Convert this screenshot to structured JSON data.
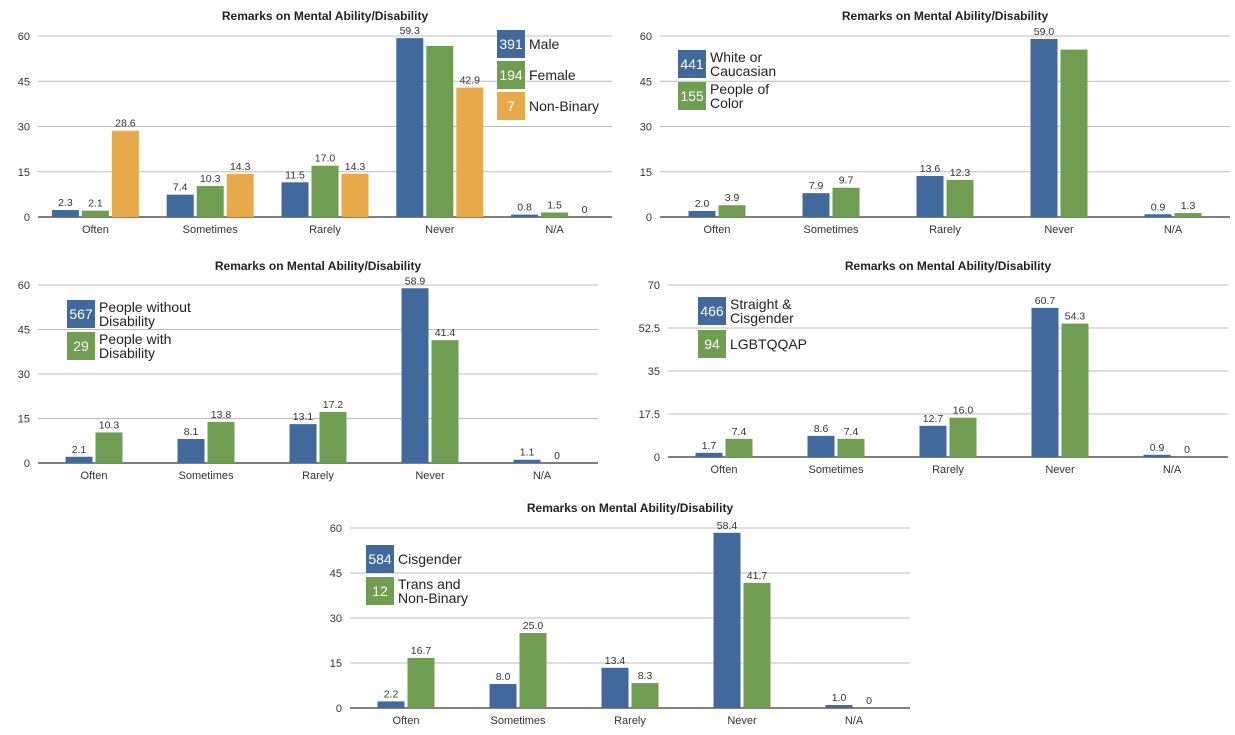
{
  "colors": {
    "blue": "#41699b",
    "green": "#6f9e52",
    "orange": "#e8a94a",
    "grid": "#bdbdbd",
    "axis": "#333333"
  },
  "chart_data": [
    {
      "type": "bar",
      "title": "Remarks on Mental Ability/Disability",
      "categories": [
        "Often",
        "Sometimes",
        "Rarely",
        "Never",
        "N/A"
      ],
      "ylim": [
        0,
        60
      ],
      "yticks": [
        "0",
        "15",
        "30",
        "45",
        "60"
      ],
      "grid": true,
      "legend_position": "top-right",
      "series": [
        {
          "count": "391",
          "name": "Male",
          "color": "#41699b",
          "values": [
            2.3,
            7.4,
            11.5,
            59.3,
            0.8
          ],
          "labels": [
            "2.3",
            "7.4",
            "11.5",
            "59.3",
            "0.8"
          ]
        },
        {
          "count": "194",
          "name": "Female",
          "color": "#6f9e52",
          "values": [
            2.1,
            10.3,
            17.0,
            56.7,
            1.5
          ],
          "labels": [
            "2.1",
            "10.3",
            "17.0",
            "",
            "1.5"
          ]
        },
        {
          "count": "7",
          "name": "Non-Binary",
          "color": "#e8a94a",
          "values": [
            28.6,
            14.3,
            14.3,
            42.9,
            0
          ],
          "labels": [
            "28.6",
            "14.3",
            "14.3",
            "42.9",
            "0"
          ]
        }
      ]
    },
    {
      "type": "bar",
      "title": "Remarks on Mental Ability/Disability",
      "categories": [
        "Often",
        "Sometimes",
        "Rarely",
        "Never",
        "N/A"
      ],
      "ylim": [
        0,
        60
      ],
      "yticks": [
        "0",
        "15",
        "30",
        "45",
        "60"
      ],
      "grid": true,
      "legend_position": "top-left",
      "series": [
        {
          "count": "441",
          "name": "White or Caucasian",
          "color": "#41699b",
          "values": [
            2.0,
            7.9,
            13.6,
            59.0,
            0.9
          ],
          "labels": [
            "2.0",
            "7.9",
            "13.6",
            "59.0",
            "0.9"
          ]
        },
        {
          "count": "155",
          "name": "People of Color",
          "color": "#6f9e52",
          "values": [
            3.9,
            9.7,
            12.3,
            55.5,
            1.3
          ],
          "labels": [
            "3.9",
            "9.7",
            "12.3",
            "",
            "1.3"
          ]
        }
      ]
    },
    {
      "type": "bar",
      "title": "Remarks on Mental Ability/Disability",
      "categories": [
        "Often",
        "Sometimes",
        "Rarely",
        "Never",
        "N/A"
      ],
      "ylim": [
        0,
        60
      ],
      "yticks": [
        "0",
        "15",
        "30",
        "45",
        "60"
      ],
      "grid": true,
      "legend_position": "top-left",
      "series": [
        {
          "count": "567",
          "name": "People without Disability",
          "color": "#41699b",
          "values": [
            2.1,
            8.1,
            13.1,
            58.9,
            1.1
          ],
          "labels": [
            "2.1",
            "8.1",
            "13.1",
            "58.9",
            "1.1"
          ]
        },
        {
          "count": "29",
          "name": "People with Disability",
          "color": "#6f9e52",
          "values": [
            10.3,
            13.8,
            17.2,
            41.4,
            0
          ],
          "labels": [
            "10.3",
            "13.8",
            "17.2",
            "41.4",
            "0"
          ]
        }
      ]
    },
    {
      "type": "bar",
      "title": "Remarks on Mental Ability/Disability",
      "categories": [
        "Often",
        "Sometimes",
        "Rarely",
        "Never",
        "N/A"
      ],
      "ylim": [
        0,
        70
      ],
      "yticks": [
        "0",
        "17.5",
        "35",
        "52.5",
        "70"
      ],
      "grid": true,
      "legend_position": "top-left",
      "series": [
        {
          "count": "466",
          "name": "Straight & Cisgender",
          "color": "#41699b",
          "values": [
            1.7,
            8.6,
            12.7,
            60.7,
            0.9
          ],
          "labels": [
            "1.7",
            "8.6",
            "12.7",
            "60.7",
            "0.9"
          ]
        },
        {
          "count": "94",
          "name": "LGBTQQAP",
          "color": "#6f9e52",
          "values": [
            7.4,
            7.4,
            16.0,
            54.3,
            0
          ],
          "labels": [
            "7.4",
            "7.4",
            "16.0",
            "54.3",
            "0"
          ]
        }
      ]
    },
    {
      "type": "bar",
      "title": "Remarks on Mental Ability/Disability",
      "categories": [
        "Often",
        "Sometimes",
        "Rarely",
        "Never",
        "N/A"
      ],
      "ylim": [
        0,
        60
      ],
      "yticks": [
        "0",
        "15",
        "30",
        "45",
        "60"
      ],
      "grid": true,
      "legend_position": "top-left",
      "series": [
        {
          "count": "584",
          "name": "Cisgender",
          "color": "#41699b",
          "values": [
            2.2,
            8.0,
            13.4,
            58.4,
            1.0
          ],
          "labels": [
            "2.2",
            "8.0",
            "13.4",
            "58.4",
            "1.0"
          ]
        },
        {
          "count": "12",
          "name": "Trans and Non-Binary",
          "color": "#6f9e52",
          "values": [
            16.7,
            25.0,
            8.3,
            41.7,
            0
          ],
          "labels": [
            "16.7",
            "25.0",
            "8.3",
            "41.7",
            "0"
          ]
        }
      ]
    }
  ]
}
